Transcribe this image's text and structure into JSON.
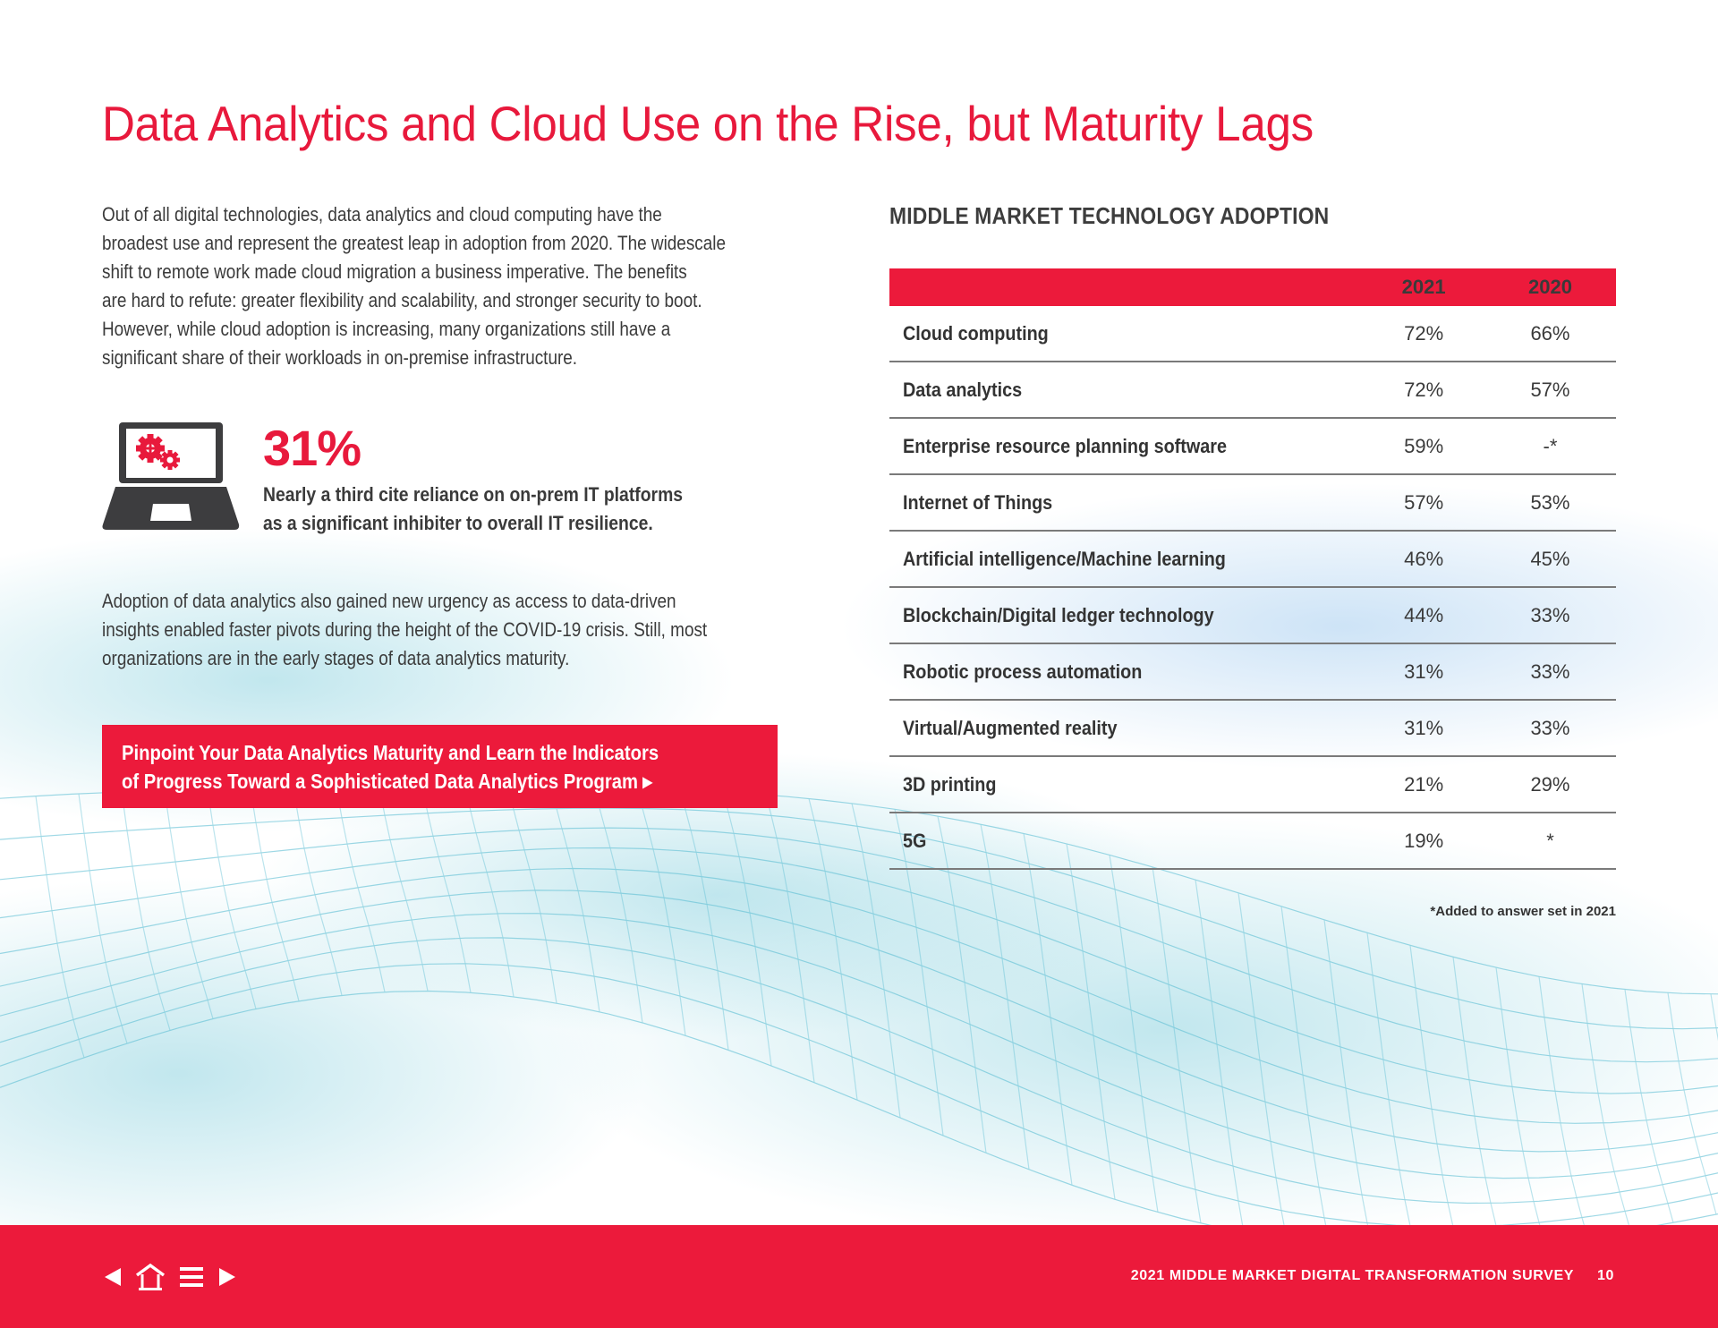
{
  "page": {
    "title": "Data Analytics and Cloud Use on the Rise, but Maturity Lags",
    "accent_color": "#ec1a3b"
  },
  "intro_paragraph": {
    "lines": [
      "Out of all digital technologies, data analytics and cloud computing have the",
      "broadest use and represent the greatest leap in adoption from 2020. The widescale",
      "shift to remote work made cloud migration a business imperative. The benefits",
      "are hard to refute: greater flexibility and scalability, and stronger security to boot.",
      "However, while cloud adoption is increasing, many organizations still have a",
      "significant share of their workloads in on-premise infrastructure."
    ]
  },
  "stat_callout": {
    "icon": "laptop-gears-icon",
    "value": "31%",
    "text_lines": [
      "Nearly a third cite reliance on on-prem IT platforms",
      "as a significant inhibiter to overall IT resilience."
    ]
  },
  "second_paragraph": {
    "lines": [
      "Adoption of data analytics also gained new urgency as access to data-driven",
      "insights enabled faster pivots during the height of the COVID-19 crisis. Still, most",
      "organizations are in the early stages of data analytics maturity."
    ]
  },
  "cta": {
    "lines": [
      "Pinpoint Your Data Analytics Maturity and Learn the Indicators",
      "of Progress Toward a Sophisticated Data Analytics Program"
    ],
    "arrow_icon": "▶"
  },
  "table": {
    "title": "MIDDLE MARKET TECHNOLOGY ADOPTION",
    "columns": [
      "",
      "2021",
      "2020"
    ],
    "rows": [
      {
        "label": "Cloud computing",
        "y2021": "72%",
        "y2020": "66%"
      },
      {
        "label": "Data analytics",
        "y2021": "72%",
        "y2020": "57%"
      },
      {
        "label": "Enterprise resource planning software",
        "y2021": "59%",
        "y2020": "-*"
      },
      {
        "label": "Internet of Things",
        "y2021": "57%",
        "y2020": "53%"
      },
      {
        "label": "Artificial intelligence/Machine learning",
        "y2021": "46%",
        "y2020": "45%"
      },
      {
        "label": "Blockchain/Digital ledger technology",
        "y2021": "44%",
        "y2020": "33%"
      },
      {
        "label": "Robotic process automation",
        "y2021": "31%",
        "y2020": "33%"
      },
      {
        "label": "Virtual/Augmented reality",
        "y2021": "31%",
        "y2020": "33%"
      },
      {
        "label": "3D printing",
        "y2021": "21%",
        "y2020": "29%"
      },
      {
        "label": "5G",
        "y2021": "19%",
        "y2020": "*"
      }
    ],
    "footnote": "*Added to answer set in 2021"
  },
  "footer": {
    "nav": {
      "prev_icon": "triangle-left-icon",
      "home_icon": "home-icon",
      "menu_icon": "menu-icon",
      "next_icon": "triangle-right-icon"
    },
    "survey_title": "2021 MIDDLE MARKET DIGITAL TRANSFORMATION SURVEY",
    "page_number": "10"
  }
}
